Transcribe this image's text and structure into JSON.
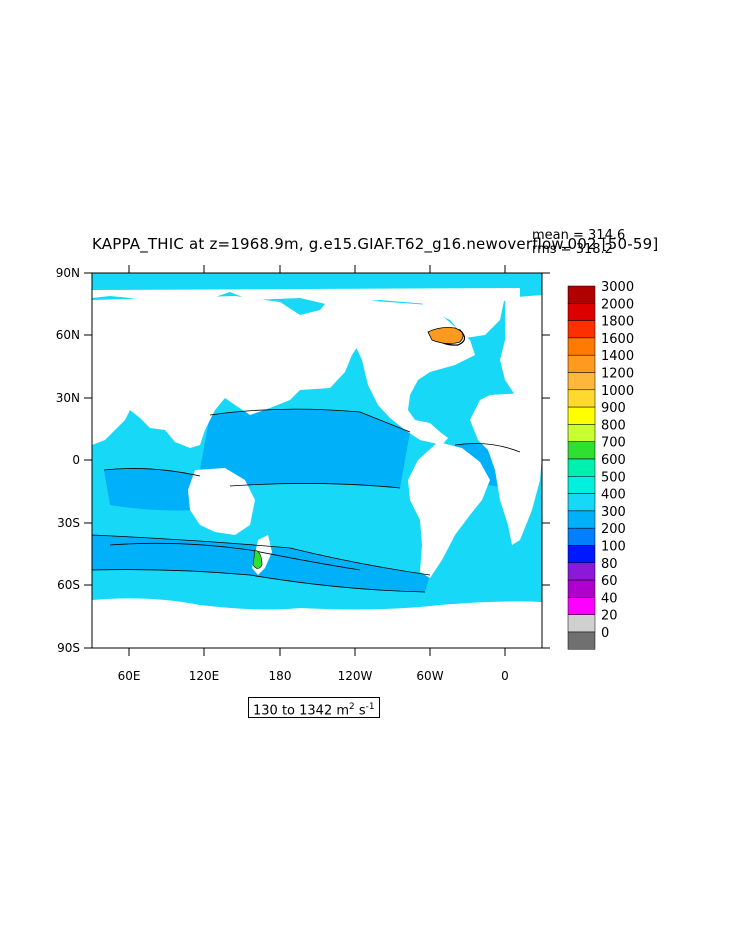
{
  "title": "KAPPA_THIC at z=1968.9m, g.e15.GIAF.T62_g16.newoverflow.002 [50-59]",
  "stats": {
    "mean_text": "mean = 314.6",
    "rms_text": "rms = 318.2"
  },
  "range_text": {
    "prefix": "130 to 1342 m",
    "sup1": "2",
    "mid": " s",
    "sup2": "-1"
  },
  "lat_labels": [
    "90N",
    "60N",
    "30N",
    "0",
    "30S",
    "60S",
    "90S"
  ],
  "lon_labels": [
    "60E",
    "120E",
    "180",
    "120W",
    "60W",
    "0"
  ],
  "colorbar": {
    "levels": [
      "3000",
      "2000",
      "1800",
      "1600",
      "1400",
      "1200",
      "1000",
      "900",
      "800",
      "700",
      "600",
      "500",
      "400",
      "300",
      "200",
      "100",
      "80",
      "60",
      "40",
      "20",
      "0"
    ],
    "colors": [
      "#b00000",
      "#dd0000",
      "#ff3000",
      "#ff7a00",
      "#ff9a20",
      "#ffb83c",
      "#ffd830",
      "#ffff00",
      "#c8ff30",
      "#30e030",
      "#00f0b0",
      "#00f0e0",
      "#18d8f8",
      "#00b0f8",
      "#0080ff",
      "#0018ff",
      "#8c18d8",
      "#b000d0",
      "#ff00ff",
      "#d0d0d0",
      "#707070"
    ]
  },
  "field_colors": {
    "ocean_main": "#18d8f8",
    "ocean_band": "#00b0f8",
    "land": "#ffffff"
  }
}
